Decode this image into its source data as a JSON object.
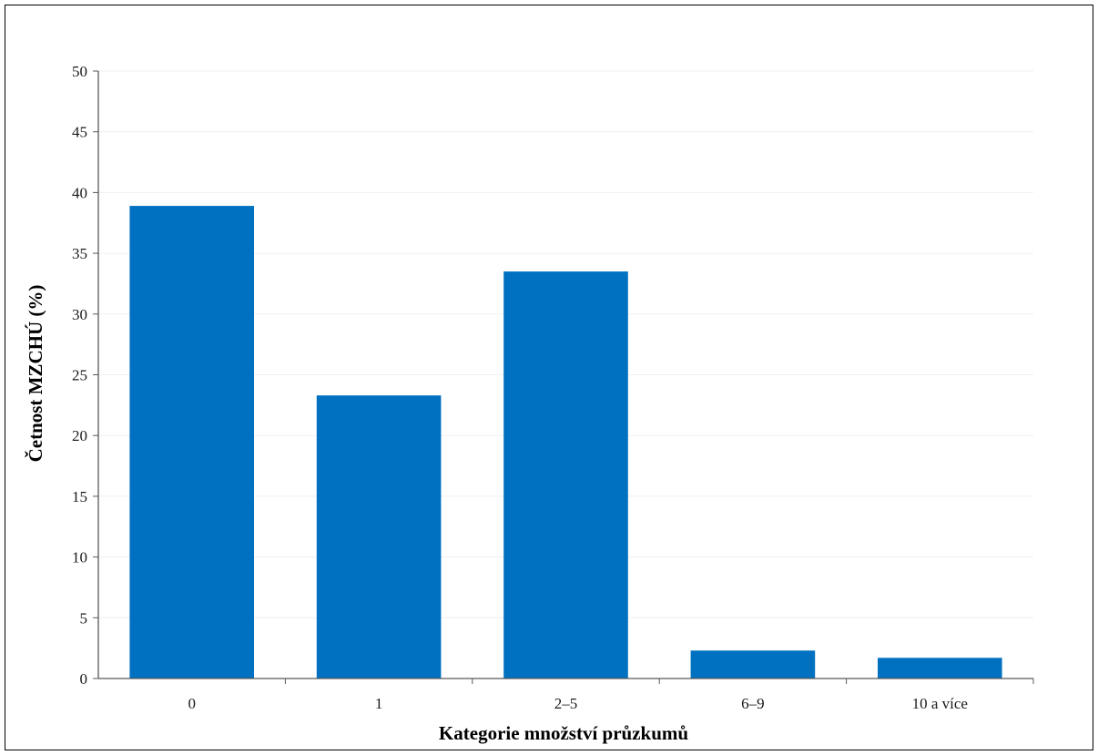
{
  "chart_data": {
    "type": "bar",
    "categories": [
      "0",
      "1",
      "2–5",
      "6–9",
      "10 a více"
    ],
    "values": [
      38.9,
      23.3,
      33.5,
      2.3,
      1.7
    ],
    "title": "",
    "xlabel": "Kategorie množství průzkumů",
    "ylabel": "Četnost MZCHÚ (%)",
    "ylim": [
      0,
      50
    ],
    "yticks": [
      "0",
      "5",
      "10",
      "15",
      "20",
      "25",
      "30",
      "35",
      "40",
      "45",
      "50"
    ],
    "grid": true,
    "legend": "none",
    "bar_color": "#0070C0",
    "grid_color": "#efefef",
    "axis_color": "#595959"
  }
}
